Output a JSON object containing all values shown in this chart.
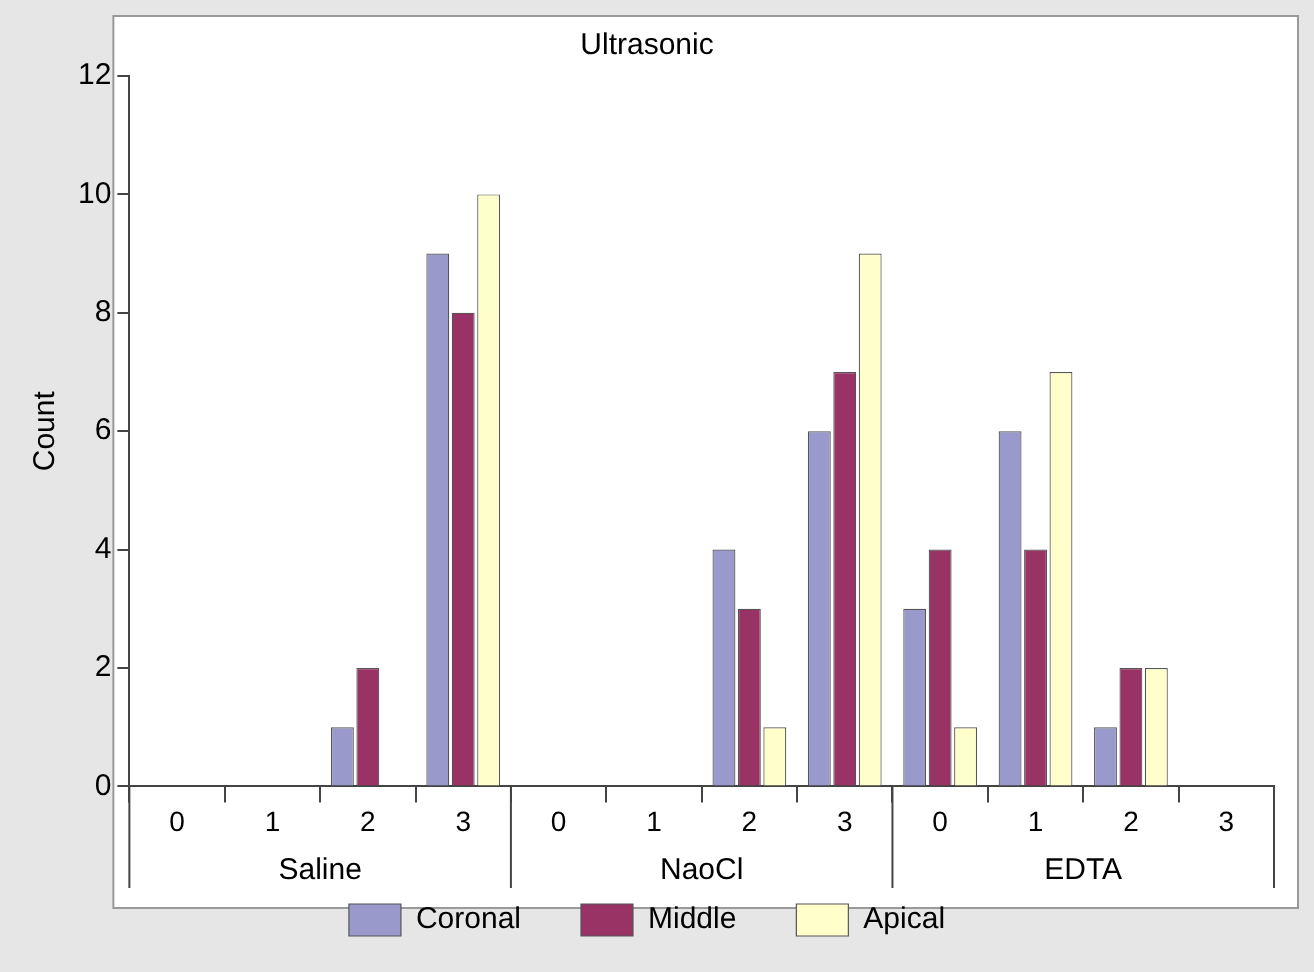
{
  "chart_data": {
    "type": "bar",
    "title": "Ultrasonic",
    "ylabel": "Count",
    "categories": [
      "0",
      "1",
      "2",
      "3",
      "0",
      "1",
      "2",
      "3",
      "0",
      "1",
      "2",
      "3"
    ],
    "annotations": [
      "Saline",
      "NaoCl",
      "EDTA"
    ],
    "series": [
      {
        "name": "Coronal",
        "color": "#9999cc",
        "values": [
          0,
          0,
          1,
          9,
          0,
          0,
          4,
          6,
          3,
          6,
          1,
          0
        ]
      },
      {
        "name": "Middle",
        "color": "#993366",
        "values": [
          0,
          0,
          2,
          8,
          0,
          0,
          3,
          7,
          4,
          4,
          2,
          0
        ]
      },
      {
        "name": "Apical",
        "color": "#ffffcc",
        "values": [
          0,
          0,
          0,
          10,
          0,
          0,
          1,
          9,
          1,
          7,
          2,
          0
        ]
      }
    ],
    "ylim": [
      0,
      12
    ],
    "yticks": [
      0,
      2,
      4,
      6,
      8,
      10,
      12
    ],
    "grid": false,
    "legend": "bottom"
  }
}
